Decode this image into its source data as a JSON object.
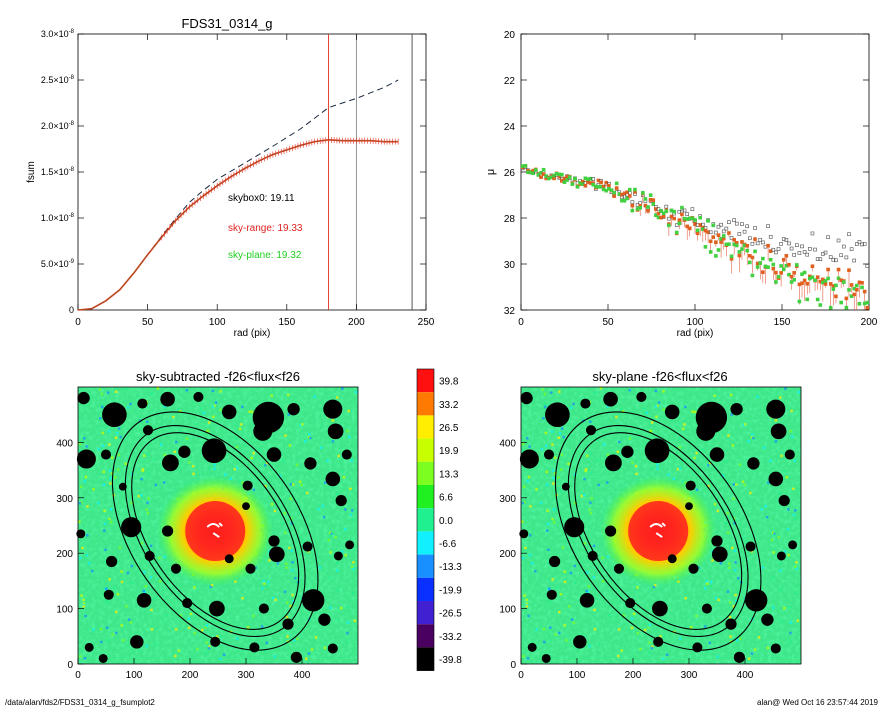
{
  "chart_data": [
    {
      "type": "line",
      "title": "FDS31_0314_g",
      "xlabel": "rad (pix)",
      "ylabel": "fsum",
      "xlim": [
        0,
        250
      ],
      "ylim": [
        0,
        3e-08
      ],
      "xticks": [
        "0",
        "50",
        "100",
        "150",
        "200",
        "250"
      ],
      "yticks": [
        {
          "mant": "0",
          "exp": ""
        },
        {
          "mant": "5.0×10",
          "exp": "-9"
        },
        {
          "mant": "1.0×10",
          "exp": "-8"
        },
        {
          "mant": "1.5×10",
          "exp": "-8"
        },
        {
          "mant": "2.0×10",
          "exp": "-8"
        },
        {
          "mant": "2.5×10",
          "exp": "-8"
        },
        {
          "mant": "3.0×10",
          "exp": "-8"
        }
      ],
      "vlines": [
        {
          "x": 180,
          "color": "#e03020"
        },
        {
          "x": 200,
          "color": "#888888"
        },
        {
          "x": 240,
          "color": "#444444"
        }
      ],
      "annotations": [
        {
          "text": "skybox0: 19.11",
          "color": "#000000"
        },
        {
          "text": "sky-range: 19.33",
          "color": "#e02020"
        },
        {
          "text": "sky-plane: 19.32",
          "color": "#20d020"
        }
      ],
      "series": [
        {
          "style": "dashed",
          "color": "#1a2a40",
          "x": [
            0,
            10,
            20,
            30,
            40,
            50,
            60,
            70,
            80,
            90,
            100,
            120,
            140,
            160,
            180,
            200,
            220,
            230
          ],
          "y": [
            0,
            1.5e-10,
            1e-09,
            2.2e-09,
            4e-09,
            6e-09,
            8e-09,
            9.9e-09,
            1.17e-08,
            1.3e-08,
            1.42e-08,
            1.6e-08,
            1.78e-08,
            1.97e-08,
            2.2e-08,
            2.3e-08,
            2.42e-08,
            2.5e-08
          ]
        },
        {
          "style": "solid-errorbar",
          "color": "#e03020",
          "x": [
            0,
            10,
            20,
            30,
            40,
            50,
            60,
            70,
            80,
            90,
            100,
            110,
            120,
            130,
            140,
            150,
            160,
            170,
            180,
            190,
            200,
            210,
            220,
            230
          ],
          "y": [
            0,
            1.5e-10,
            1e-09,
            2.2e-09,
            4e-09,
            6e-09,
            7.9e-09,
            9.7e-09,
            1.12e-08,
            1.24e-08,
            1.35e-08,
            1.45e-08,
            1.54e-08,
            1.62e-08,
            1.69e-08,
            1.74e-08,
            1.79e-08,
            1.83e-08,
            1.85e-08,
            1.84e-08,
            1.84e-08,
            1.84e-08,
            1.83e-08,
            1.83e-08
          ]
        }
      ]
    },
    {
      "type": "scatter",
      "title": "",
      "xlabel": "rad (pix)",
      "ylabel": "μ",
      "xlim": [
        0,
        200
      ],
      "ylim": [
        32,
        20
      ],
      "xticks": [
        "0",
        "50",
        "100",
        "150",
        "200"
      ],
      "yticks": [
        "20",
        "22",
        "24",
        "26",
        "28",
        "30",
        "32"
      ],
      "series": [
        {
          "marker": "square",
          "color": "#505050",
          "x": [
            2,
            10,
            20,
            30,
            40,
            50,
            60,
            70,
            80,
            90,
            100,
            110,
            120,
            130,
            140,
            150,
            160,
            170,
            180,
            190,
            200
          ],
          "y": [
            25.8,
            26.1,
            26.2,
            26.3,
            26.5,
            26.7,
            27.0,
            27.3,
            27.6,
            27.9,
            28.1,
            28.3,
            28.5,
            28.7,
            28.9,
            29.0,
            29.1,
            29.2,
            29.3,
            29.4,
            29.5
          ]
        },
        {
          "marker": "square",
          "color": "#e06020",
          "x": [
            2,
            10,
            20,
            30,
            40,
            50,
            60,
            70,
            80,
            90,
            100,
            110,
            120,
            130,
            140,
            150,
            160,
            170,
            180,
            190,
            200
          ],
          "y": [
            25.8,
            26.1,
            26.2,
            26.3,
            26.5,
            26.7,
            27.0,
            27.4,
            27.8,
            28.1,
            28.5,
            28.8,
            29.1,
            29.4,
            29.8,
            30.1,
            30.4,
            30.5,
            30.7,
            30.9,
            31.0
          ]
        },
        {
          "marker": "square",
          "color": "#40d040",
          "x": [
            2,
            10,
            20,
            30,
            40,
            50,
            60,
            70,
            80,
            90,
            100,
            110,
            120,
            130,
            140,
            150,
            160,
            170,
            180,
            190,
            200
          ],
          "y": [
            25.8,
            26.1,
            26.2,
            26.3,
            26.5,
            26.7,
            27.0,
            27.4,
            27.8,
            28.1,
            28.5,
            28.8,
            29.1,
            29.5,
            29.9,
            30.3,
            30.6,
            30.8,
            31.0,
            31.2,
            31.4
          ]
        }
      ]
    },
    {
      "type": "heatmap",
      "title": "sky-subtracted -f26<flux<f26",
      "xlim": [
        0,
        500
      ],
      "ylim": [
        0,
        500
      ],
      "xticks": [
        "0",
        "100",
        "200",
        "300",
        "400"
      ],
      "yticks": [
        "0",
        "100",
        "200",
        "300",
        "400"
      ],
      "center": [
        245,
        240
      ],
      "ellipses": [
        {
          "rx": 150,
          "ry": 240,
          "angle": -35
        },
        {
          "rx": 128,
          "ry": 214,
          "angle": -35
        },
        {
          "rx": 118,
          "ry": 200,
          "angle": -35
        }
      ]
    },
    {
      "type": "heatmap",
      "title": "sky-plane -f26<flux<f26",
      "xlim": [
        0,
        500
      ],
      "ylim": [
        0,
        500
      ],
      "xticks": [
        "0",
        "100",
        "200",
        "300",
        "400"
      ],
      "yticks": [
        "0",
        "100",
        "200",
        "300",
        "400"
      ],
      "center": [
        245,
        240
      ],
      "ellipses": [
        {
          "rx": 150,
          "ry": 240,
          "angle": -35
        },
        {
          "rx": 128,
          "ry": 214,
          "angle": -35
        },
        {
          "rx": 118,
          "ry": 200,
          "angle": -35
        }
      ]
    }
  ],
  "colorbar": {
    "entries": [
      {
        "label": "39.8",
        "color": "#ff1010"
      },
      {
        "label": "33.2",
        "color": "#ff7a00"
      },
      {
        "label": "26.5",
        "color": "#ffee00"
      },
      {
        "label": "19.9",
        "color": "#c8ff00"
      },
      {
        "label": "13.3",
        "color": "#7cff20"
      },
      {
        "label": "6.6",
        "color": "#20f020"
      },
      {
        "label": "0.0",
        "color": "#20f090"
      },
      {
        "label": "-6.6",
        "color": "#10f0ff"
      },
      {
        "label": "-13.3",
        "color": "#1890ff"
      },
      {
        "label": "-19.9",
        "color": "#0a30ff"
      },
      {
        "label": "-26.5",
        "color": "#4020d0"
      },
      {
        "label": "-33.2",
        "color": "#4a0060"
      },
      {
        "label": "-39.8",
        "color": "#000000"
      }
    ]
  },
  "footer": {
    "path": "/data/alan/fds2/FDS31_0314_g_fsumplot2",
    "stamp": "alan@  Wed Oct 16 23:57:44 2019"
  }
}
